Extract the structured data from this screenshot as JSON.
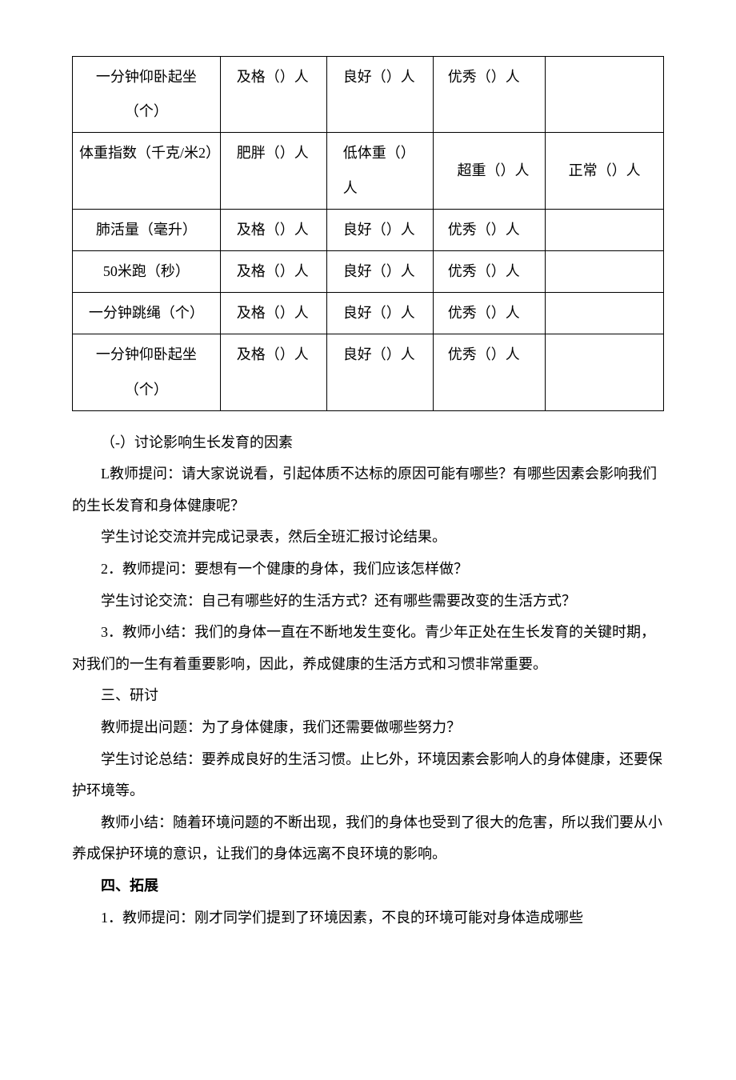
{
  "table": {
    "rows": [
      {
        "label": "一分钟仰卧起坐（个）",
        "a": "及格（）人",
        "b": "良好（）人",
        "c": "优秀（）人",
        "d": ""
      },
      {
        "label": "体重指数（千克/米2）",
        "a": "肥胖（）人",
        "b": "低体重（）人",
        "c": "超重（）人",
        "d": "正常（）人"
      },
      {
        "label": "肺活量（毫升）",
        "a": "及格（）人",
        "b": "良好（）人",
        "c": "优秀（）人",
        "d": ""
      },
      {
        "label": "50米跑（秒）",
        "a": "及格（）人",
        "b": "良好（）人",
        "c": "优秀（）人",
        "d": ""
      },
      {
        "label": "一分钟跳绳（个）",
        "a": "及格（）人",
        "b": "良好（）人",
        "c": "优秀（）人",
        "d": ""
      },
      {
        "label": "一分钟仰卧起坐（个）",
        "a": "及格（）人",
        "b": "良好（）人",
        "c": "优秀（）人",
        "d": ""
      }
    ]
  },
  "paras": {
    "p1": "（-）讨论影响生长发育的因素",
    "p2": "L教师提问：请大家说说看，引起体质不达标的原因可能有哪些？有哪些因素会影响我们的生长发育和身体健康呢？",
    "p3": "学生讨论交流并完成记录表，然后全班汇报讨论结果。",
    "p4": "2．教师提问：要想有一个健康的身体，我们应该怎样做？",
    "p5": "学生讨论交流：自己有哪些好的生活方式？还有哪些需要改变的生活方式？",
    "p6": "3．教师小结：我们的身体一直在不断地发生变化。青少年正处在生长发育的关键时期，对我们的一生有着重要影响，因此，养成健康的生活方式和习惯非常重要。",
    "p7": "三、研讨",
    "p8": "教师提出问题：为了身体健康，我们还需要做哪些努力？",
    "p9": "学生讨论总结：要养成良好的生活习惯。止匕外，环境因素会影响人的身体健康，还要保护环境等。",
    "p10": "教师小结：随着环境问题的不断出现，我们的身体也受到了很大的危害，所以我们要从小养成保护环境的意识，让我们的身体远离不良环境的影响。",
    "p11": "四、拓展",
    "p12": "1．教师提问：刚才同学们提到了环境因素，不良的环境可能对身体造成哪些"
  }
}
